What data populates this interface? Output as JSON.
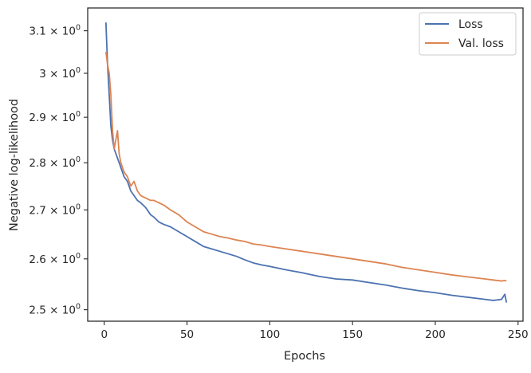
{
  "chart_data": {
    "type": "line",
    "title": "",
    "xlabel": "Epochs",
    "ylabel": "Negative log-likelihood",
    "yscale": "log",
    "xlim": [
      -10,
      253
    ],
    "ylim": [
      2.478,
      3.155
    ],
    "xticks": [
      0,
      50,
      100,
      150,
      200,
      250
    ],
    "xtick_labels": [
      "0",
      "50",
      "100",
      "150",
      "200",
      "250"
    ],
    "yticks": [
      2.5,
      2.6,
      2.7,
      2.8,
      2.9,
      3.0,
      3.1
    ],
    "ytick_labels": [
      {
        "mantissa": "2.5",
        "base": "10",
        "exp": "0"
      },
      {
        "mantissa": "2.6",
        "base": "10",
        "exp": "0"
      },
      {
        "mantissa": "2.7",
        "base": "10",
        "exp": "0"
      },
      {
        "mantissa": "2.8",
        "base": "10",
        "exp": "0"
      },
      {
        "mantissa": "2.9",
        "base": "10",
        "exp": "0"
      },
      {
        "mantissa": "3",
        "base": "10",
        "exp": "0"
      },
      {
        "mantissa": "3.1",
        "base": "10",
        "exp": "0"
      }
    ],
    "grid": false,
    "legend_position": "top-right",
    "series": [
      {
        "name": "Loss",
        "color": "#4c72b0",
        "x": [
          1,
          2,
          3,
          4,
          5,
          6,
          7,
          8,
          9,
          10,
          12,
          14,
          16,
          18,
          20,
          22,
          25,
          28,
          30,
          33,
          36,
          40,
          45,
          50,
          55,
          60,
          65,
          70,
          75,
          80,
          85,
          90,
          95,
          100,
          110,
          120,
          130,
          140,
          150,
          160,
          170,
          180,
          190,
          200,
          210,
          220,
          230,
          235,
          240,
          242,
          243
        ],
        "y": [
          3.12,
          3.02,
          2.95,
          2.88,
          2.85,
          2.83,
          2.82,
          2.81,
          2.8,
          2.79,
          2.77,
          2.76,
          2.74,
          2.73,
          2.72,
          2.715,
          2.705,
          2.69,
          2.685,
          2.675,
          2.67,
          2.665,
          2.655,
          2.645,
          2.635,
          2.625,
          2.62,
          2.615,
          2.61,
          2.605,
          2.598,
          2.592,
          2.588,
          2.585,
          2.578,
          2.572,
          2.565,
          2.56,
          2.558,
          2.553,
          2.548,
          2.542,
          2.537,
          2.533,
          2.528,
          2.524,
          2.52,
          2.518,
          2.52,
          2.53,
          2.514
        ]
      },
      {
        "name": "Val. loss",
        "color": "#dd8452",
        "x": [
          1,
          2,
          3,
          4,
          5,
          6,
          7,
          8,
          9,
          10,
          12,
          14,
          16,
          18,
          20,
          22,
          25,
          28,
          30,
          33,
          36,
          40,
          45,
          50,
          55,
          60,
          65,
          70,
          75,
          80,
          85,
          90,
          95,
          100,
          110,
          120,
          130,
          140,
          150,
          160,
          170,
          180,
          190,
          200,
          210,
          220,
          230,
          235,
          240,
          242,
          243
        ],
        "y": [
          3.05,
          3.02,
          3.0,
          2.95,
          2.87,
          2.83,
          2.85,
          2.87,
          2.82,
          2.8,
          2.78,
          2.77,
          2.75,
          2.76,
          2.74,
          2.73,
          2.725,
          2.72,
          2.72,
          2.715,
          2.71,
          2.7,
          2.69,
          2.675,
          2.665,
          2.655,
          2.65,
          2.645,
          2.642,
          2.638,
          2.635,
          2.63,
          2.628,
          2.625,
          2.62,
          2.615,
          2.61,
          2.605,
          2.6,
          2.595,
          2.59,
          2.583,
          2.578,
          2.573,
          2.568,
          2.564,
          2.56,
          2.558,
          2.556,
          2.557,
          2.556
        ]
      }
    ]
  }
}
